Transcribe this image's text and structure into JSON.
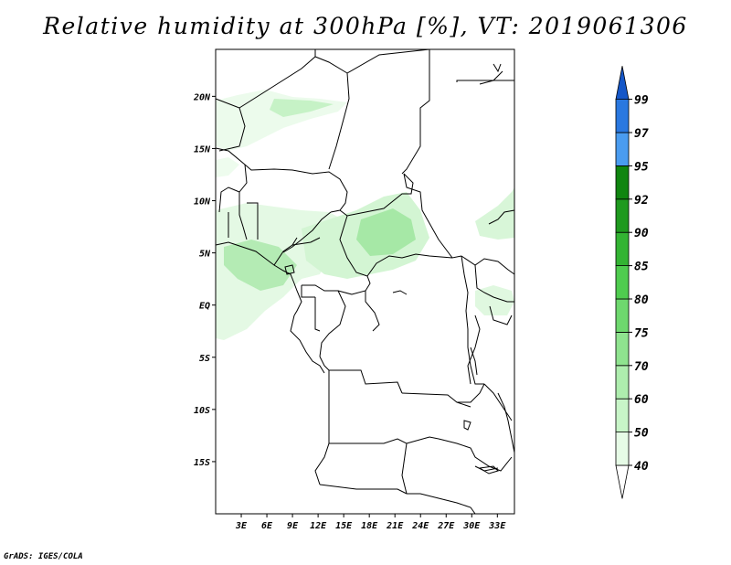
{
  "title": "Relative humidity at 300hPa [%], VT: 2019061306",
  "credit": "GrADS: IGES/COLA",
  "map": {
    "lon_range": [
      0,
      35
    ],
    "lat_range": [
      -20,
      24.5
    ],
    "lat_ticks": [
      {
        "value": 20,
        "label": "20N"
      },
      {
        "value": 15,
        "label": "15N"
      },
      {
        "value": 10,
        "label": "10N"
      },
      {
        "value": 5,
        "label": "5N"
      },
      {
        "value": 0,
        "label": "EQ"
      },
      {
        "value": -5,
        "label": "5S"
      },
      {
        "value": -10,
        "label": "10S"
      },
      {
        "value": -15,
        "label": "15S"
      }
    ],
    "lon_ticks": [
      {
        "value": 3,
        "label": "3E"
      },
      {
        "value": 6,
        "label": "6E"
      },
      {
        "value": 9,
        "label": "9E"
      },
      {
        "value": 12,
        "label": "12E"
      },
      {
        "value": 15,
        "label": "15E"
      },
      {
        "value": 18,
        "label": "18E"
      },
      {
        "value": 21,
        "label": "21E"
      },
      {
        "value": 24,
        "label": "24E"
      },
      {
        "value": 27,
        "label": "27E"
      },
      {
        "value": 30,
        "label": "30E"
      },
      {
        "value": 33,
        "label": "33E"
      }
    ]
  },
  "colorbar": {
    "levels": [
      "40",
      "50",
      "60",
      "70",
      "75",
      "80",
      "85",
      "90",
      "92",
      "95",
      "97",
      "99"
    ],
    "colors": [
      "#ffffff",
      "#e6fbe6",
      "#c8f5c8",
      "#aeedae",
      "#8fe38f",
      "#6ed86e",
      "#4fcc4f",
      "#33b433",
      "#1f9a1f",
      "#108510",
      "#4a9cf0",
      "#2a78e0",
      "#1557c8"
    ]
  },
  "colors": {
    "humidity_light": "#e9fbe9",
    "humidity_mid": "#c6f2c6",
    "humidity_high": "#9ee69e",
    "border": "#000000"
  }
}
